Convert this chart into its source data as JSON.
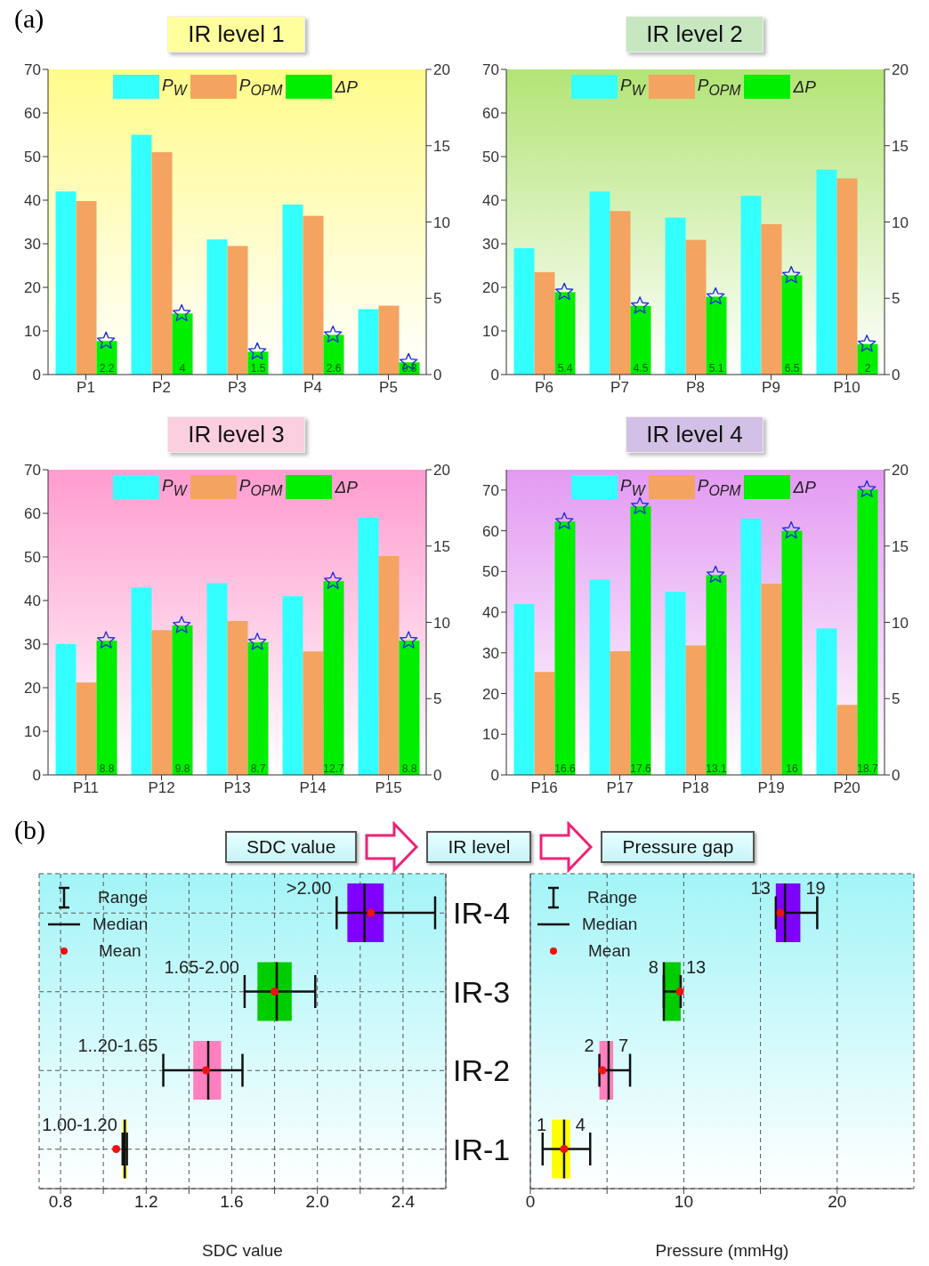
{
  "chart_data": [
    {
      "type": "bar",
      "title": "IR level 1",
      "annotations": [
        "(a)"
      ],
      "categories": [
        "P1",
        "P2",
        "P3",
        "P4",
        "P5"
      ],
      "legend": "top",
      "ylim": [
        0,
        70
      ],
      "yticks": [
        0,
        10,
        20,
        30,
        40,
        50,
        60,
        70
      ],
      "y2lim": [
        0,
        20
      ],
      "y2ticks": [
        0,
        5,
        10,
        15,
        20
      ],
      "series": [
        {
          "name": "P$_{W}$",
          "color": "#33ffff",
          "values": [
            42,
            55,
            31,
            39,
            15
          ]
        },
        {
          "name": "P$_{OPM}$",
          "color": "#f4a460",
          "values": [
            39.8,
            51,
            29.5,
            36.4,
            15.8
          ]
        },
        {
          "name": "ΔP",
          "color": "#00ee00",
          "axis": "y2",
          "values": [
            2.2,
            4,
            1.5,
            2.6,
            0.8
          ],
          "value_labels": [
            "2.2",
            "4",
            "1.5",
            "2.6",
            "0.8"
          ]
        },
        {
          "type": "scatter",
          "color": "#2233dd",
          "axis": "y2",
          "marker": "star",
          "values": [
            2.2,
            4,
            1.5,
            2.6,
            0.8
          ]
        }
      ]
    },
    {
      "type": "bar",
      "title": "IR level 2",
      "categories": [
        "P6",
        "P7",
        "P8",
        "P9",
        "P10"
      ],
      "legend": "top",
      "ylim": [
        0,
        70
      ],
      "yticks": [
        0,
        10,
        20,
        30,
        40,
        50,
        60,
        70
      ],
      "y2lim": [
        0,
        20
      ],
      "y2ticks": [
        0,
        5,
        10,
        15,
        20
      ],
      "series": [
        {
          "name": "P$_{W}$",
          "color": "#33ffff",
          "values": [
            29,
            42,
            36,
            41,
            47
          ]
        },
        {
          "name": "P$_{OPM}$",
          "color": "#f4a460",
          "values": [
            23.5,
            37.5,
            30.9,
            34.5,
            45
          ]
        },
        {
          "name": "ΔP",
          "color": "#00ee00",
          "axis": "y2",
          "values": [
            5.4,
            4.5,
            5.1,
            6.5,
            2
          ],
          "value_labels": [
            "5.4",
            "4.5",
            "5.1",
            "6.5",
            "2"
          ]
        },
        {
          "type": "scatter",
          "color": "#2233dd",
          "axis": "y2",
          "marker": "star",
          "values": [
            5.4,
            4.5,
            5.1,
            6.5,
            2
          ]
        }
      ]
    },
    {
      "type": "bar",
      "title": "IR level 3",
      "categories": [
        "P11",
        "P12",
        "P13",
        "P14",
        "P15"
      ],
      "legend": "top",
      "ylim": [
        0,
        70
      ],
      "yticks": [
        0,
        10,
        20,
        30,
        40,
        50,
        60,
        70
      ],
      "y2lim": [
        0,
        20
      ],
      "y2ticks": [
        0,
        5,
        10,
        15,
        20
      ],
      "series": [
        {
          "name": "P$_{W}$",
          "color": "#33ffff",
          "values": [
            30,
            43,
            44,
            41,
            59
          ]
        },
        {
          "name": "P$_{OPM}$",
          "color": "#f4a460",
          "values": [
            21.2,
            33.2,
            35.3,
            28.3,
            50.2
          ]
        },
        {
          "name": "ΔP",
          "color": "#00ee00",
          "axis": "y2",
          "values": [
            8.8,
            9.8,
            8.7,
            12.7,
            8.8
          ],
          "value_labels": [
            "8.8",
            "9.8",
            "8.7",
            "12.7",
            "8.8"
          ]
        },
        {
          "type": "scatter",
          "color": "#2233dd",
          "axis": "y2",
          "marker": "star",
          "values": [
            8.8,
            9.8,
            8.7,
            12.7,
            8.8
          ]
        }
      ]
    },
    {
      "type": "bar",
      "title": "IR level 4",
      "categories": [
        "P16",
        "P17",
        "P18",
        "P19",
        "P20"
      ],
      "legend": "top",
      "ylim": [
        0,
        75
      ],
      "yticks": [
        0,
        10,
        20,
        30,
        40,
        50,
        60,
        70
      ],
      "y2lim": [
        0,
        20
      ],
      "y2ticks": [
        0,
        5,
        10,
        15,
        20
      ],
      "series": [
        {
          "name": "P$_{W}$",
          "color": "#33ffff",
          "values": [
            42,
            48,
            45,
            63,
            36
          ]
        },
        {
          "name": "P$_{OPM}$",
          "color": "#f4a460",
          "values": [
            25.3,
            30.4,
            31.8,
            47,
            17.2
          ]
        },
        {
          "name": "ΔP",
          "color": "#00ee00",
          "axis": "y2",
          "values": [
            16.6,
            17.6,
            13.1,
            16,
            18.7
          ],
          "value_labels": [
            "16.6",
            "17.6",
            "13.1",
            "16",
            "18.7"
          ]
        },
        {
          "type": "scatter",
          "color": "#2233dd",
          "axis": "y2",
          "marker": "star",
          "values": [
            16.6,
            17.6,
            13.1,
            16,
            18.7
          ]
        }
      ]
    },
    {
      "type": "box",
      "orientation": "horizontal",
      "title": "SDC value",
      "ylabel": "IR level",
      "xlabel": "SDC value",
      "categories": [
        "IR-4",
        "IR-3",
        "IR-2",
        "IR-1"
      ],
      "colors": [
        "#8000ff",
        "#00cc00",
        "#ff7fbf",
        "#ffff00"
      ],
      "grid": true,
      "xlim": [
        0.7,
        2.6
      ],
      "xticks": [
        0.8,
        {
          "value": 1,
          "label": null
        },
        1.2,
        {
          "value": 1.4,
          "label": null
        },
        1.6,
        {
          "value": 1.8,
          "label": null
        },
        {
          "value": 2,
          "label": "2.0"
        },
        {
          "value": 2.2,
          "label": null
        },
        2.4
      ],
      "boxes": [
        {
          "low": 2.09,
          "q1": 2.14,
          "median": 2.22,
          "q3": 2.31,
          "high": 2.55,
          "mean": 2.25
        },
        {
          "low": 1.66,
          "q1": 1.72,
          "median": 1.81,
          "q3": 1.88,
          "high": 1.99,
          "mean": 1.8
        },
        {
          "low": 1.28,
          "q1": 1.42,
          "median": 1.49,
          "q3": 1.55,
          "high": 1.65,
          "mean": 1.48
        },
        {
          "low": 1.09,
          "q1": 1.09,
          "median": 1.1,
          "q3": 1.11,
          "high": 1.11,
          "mean": 1.06
        }
      ],
      "annotations": [
        "(b)",
        "Range",
        "Median",
        "Mean",
        {
          "text": ">2.00",
          "x": 2.09,
          "y": "IR-4"
        },
        {
          "text": "1.65-2.00",
          "x": 1.66,
          "y": "IR-3"
        },
        {
          "text": "1..20-1.65",
          "x": 1.28,
          "y": "IR-2"
        },
        {
          "text": "1.00-1.20",
          "x": 1.09,
          "y": "IR-1"
        }
      ]
    },
    {
      "type": "box",
      "orientation": "horizontal",
      "title": "Pressure gap",
      "xlabel": "Pressure (mmHg)",
      "categories": [
        "IR-4",
        "IR-3",
        "IR-2",
        "IR-1"
      ],
      "tick_labels": "x",
      "colors": [
        "#8000ff",
        "#00cc00",
        "#ff7fbf",
        "#ffff00"
      ],
      "grid": true,
      "xlim": [
        0,
        25
      ],
      "xticks": [
        0,
        {
          "value": 5,
          "label": null
        },
        10,
        {
          "value": 15,
          "label": null
        },
        20
      ],
      "boxes": [
        {
          "low": 16,
          "q1": 16,
          "median": 16.6,
          "q3": 17.6,
          "high": 18.7,
          "mean": 16.3
        },
        {
          "low": 8.7,
          "q1": 8.7,
          "median": 8.7,
          "q3": 9.8,
          "high": 9.8,
          "mean": 9.75
        },
        {
          "low": 4.5,
          "q1": 4.5,
          "median": 5.1,
          "q3": 5.4,
          "high": 6.5,
          "mean": 4.7
        },
        {
          "low": 0.8,
          "q1": 1.4,
          "median": 2.2,
          "q3": 2.6,
          "high": 3.9,
          "mean": 2.2
        }
      ],
      "annotations": [
        "Range",
        "Median",
        "Mean",
        {
          "text": "13",
          "x": 16,
          "y": "IR-4"
        },
        {
          "text": "19",
          "x": 17.6,
          "y": "IR-4"
        },
        {
          "text": "8",
          "x": 8.7,
          "y": "IR-3"
        },
        {
          "text": "13",
          "x": 9.8,
          "y": "IR-3"
        },
        {
          "text": "2",
          "x": 4.5,
          "y": "IR-2"
        },
        {
          "text": "7",
          "x": 5.4,
          "y": "IR-2"
        },
        {
          "text": "1",
          "x": 1.4,
          "y": "IR-1"
        },
        {
          "text": "4",
          "x": 2.6,
          "y": "IR-1"
        }
      ]
    }
  ]
}
